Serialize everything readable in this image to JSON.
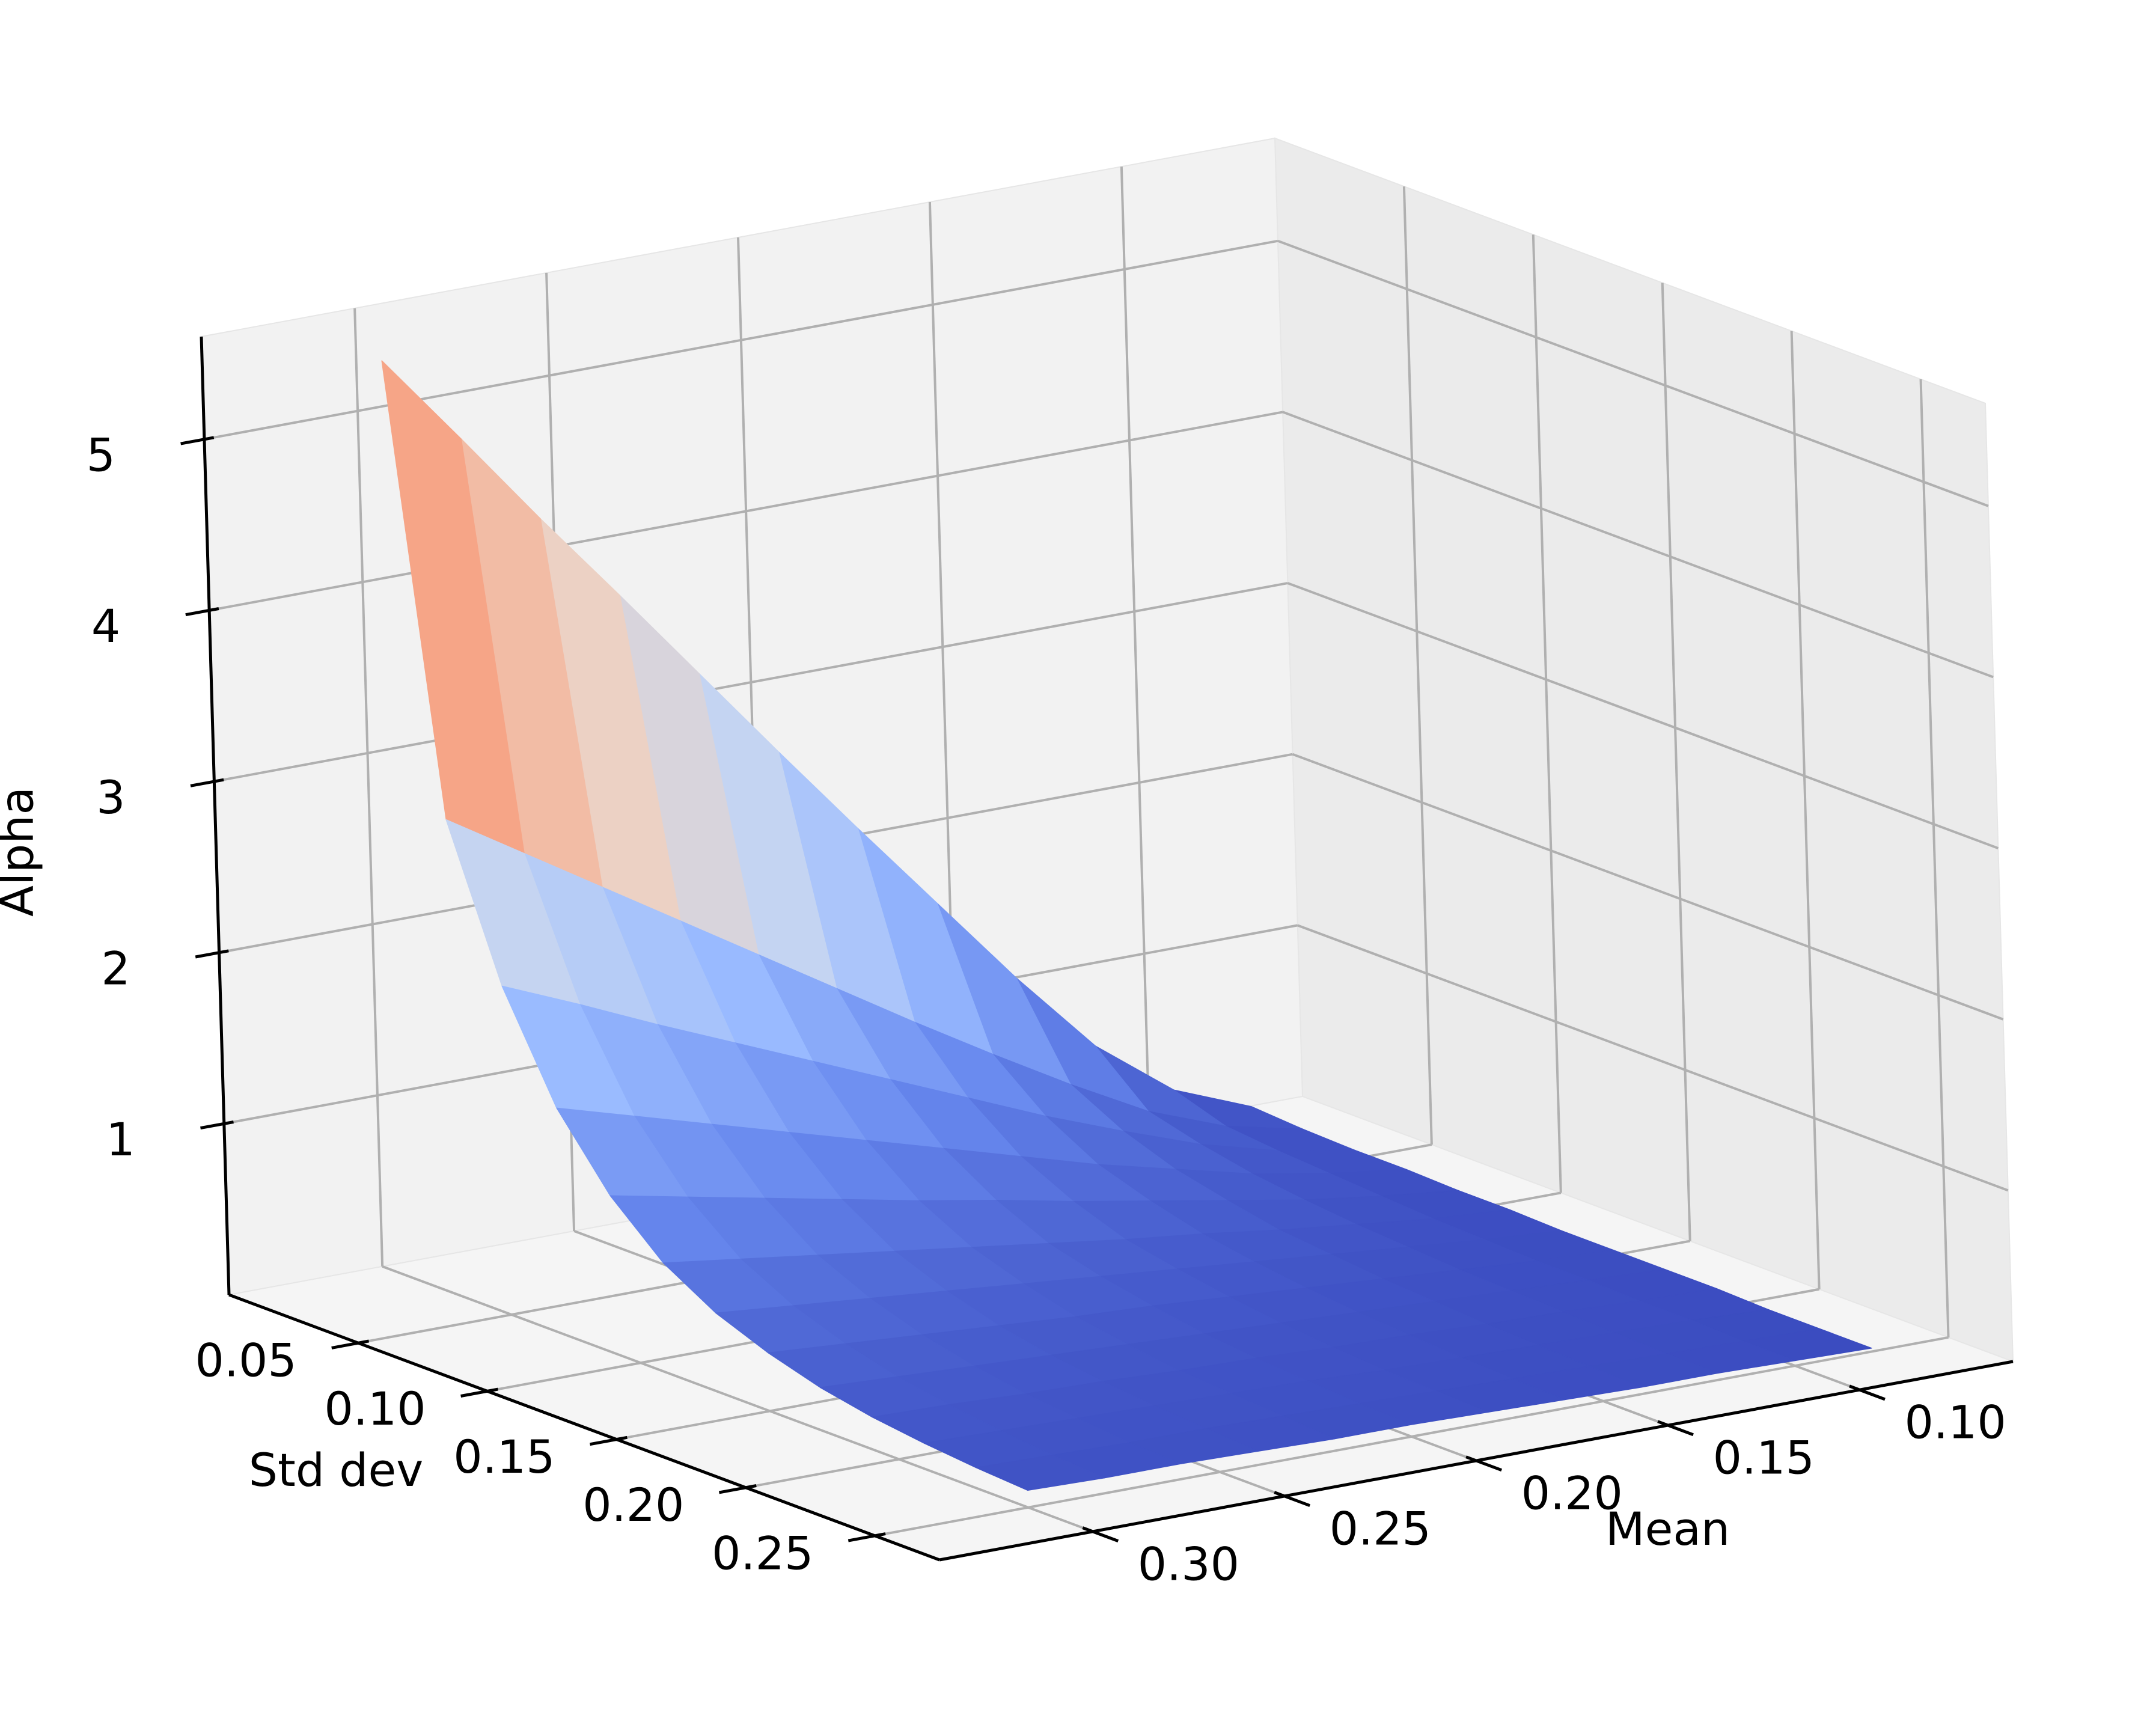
{
  "chart_data": {
    "type": "surface3d",
    "title": "",
    "colormap": "coolwarm",
    "colormap_colors": [
      "#3b4cc0",
      "#6788ee",
      "#9abbff",
      "#c9d7f0",
      "#edd1c2",
      "#f7a889",
      "#e26952",
      "#b40426"
    ],
    "xlabel": "Mean",
    "ylabel": "Std dev",
    "zlabel": "Alpha",
    "x_ticks": [
      "0.10",
      "0.15",
      "0.20",
      "0.25",
      "0.30"
    ],
    "y_ticks": [
      "0.05",
      "0.10",
      "0.15",
      "0.20",
      "0.25"
    ],
    "z_ticks": [
      "1",
      "2",
      "3",
      "4",
      "5"
    ],
    "xlim": [
      0.06,
      0.34
    ],
    "ylim": [
      0.0,
      0.275
    ],
    "zlim": [
      0.0,
      5.6
    ],
    "view": {
      "elev": 10,
      "azim": 45
    },
    "grid": true,
    "mean": [
      0.3,
      0.28,
      0.26,
      0.24,
      0.22,
      0.2,
      0.18,
      0.16,
      0.14,
      0.12,
      0.1,
      0.08
    ],
    "std_dev": [
      0.01,
      0.03,
      0.05,
      0.07,
      0.09,
      0.11,
      0.13,
      0.15,
      0.17,
      0.19,
      0.21,
      0.23,
      0.25
    ],
    "alpha": [
      [
        5.35,
        4.81,
        4.26,
        3.73,
        3.19,
        2.65,
        2.12,
        1.6,
        1.08,
        0.6,
        0.26,
        0.08
      ],
      [
        2.78,
        2.5,
        2.22,
        1.94,
        1.66,
        1.38,
        1.1,
        0.83,
        0.57,
        0.33,
        0.16,
        0.06
      ],
      [
        1.92,
        1.73,
        1.53,
        1.34,
        1.15,
        0.96,
        0.77,
        0.58,
        0.41,
        0.25,
        0.13,
        0.05
      ],
      [
        1.32,
        1.19,
        1.06,
        0.93,
        0.8,
        0.67,
        0.54,
        0.41,
        0.3,
        0.19,
        0.11,
        0.05
      ],
      [
        0.92,
        0.83,
        0.74,
        0.65,
        0.56,
        0.48,
        0.39,
        0.31,
        0.23,
        0.15,
        0.09,
        0.04
      ],
      [
        0.64,
        0.58,
        0.52,
        0.46,
        0.4,
        0.34,
        0.28,
        0.23,
        0.17,
        0.12,
        0.07,
        0.04
      ],
      [
        0.46,
        0.42,
        0.38,
        0.34,
        0.3,
        0.26,
        0.22,
        0.18,
        0.14,
        0.1,
        0.06,
        0.03
      ],
      [
        0.34,
        0.31,
        0.28,
        0.25,
        0.22,
        0.2,
        0.17,
        0.14,
        0.11,
        0.08,
        0.05,
        0.03
      ],
      [
        0.25,
        0.23,
        0.21,
        0.19,
        0.17,
        0.15,
        0.13,
        0.11,
        0.09,
        0.07,
        0.05,
        0.03
      ],
      [
        0.19,
        0.18,
        0.16,
        0.15,
        0.13,
        0.12,
        0.1,
        0.09,
        0.07,
        0.06,
        0.04,
        0.03
      ],
      [
        0.15,
        0.14,
        0.13,
        0.12,
        0.11,
        0.1,
        0.08,
        0.07,
        0.06,
        0.05,
        0.04,
        0.02
      ],
      [
        0.12,
        0.11,
        0.1,
        0.1,
        0.09,
        0.08,
        0.07,
        0.06,
        0.05,
        0.04,
        0.03,
        0.02
      ],
      [
        0.1,
        0.09,
        0.09,
        0.08,
        0.07,
        0.07,
        0.06,
        0.05,
        0.04,
        0.04,
        0.03,
        0.02
      ]
    ]
  }
}
